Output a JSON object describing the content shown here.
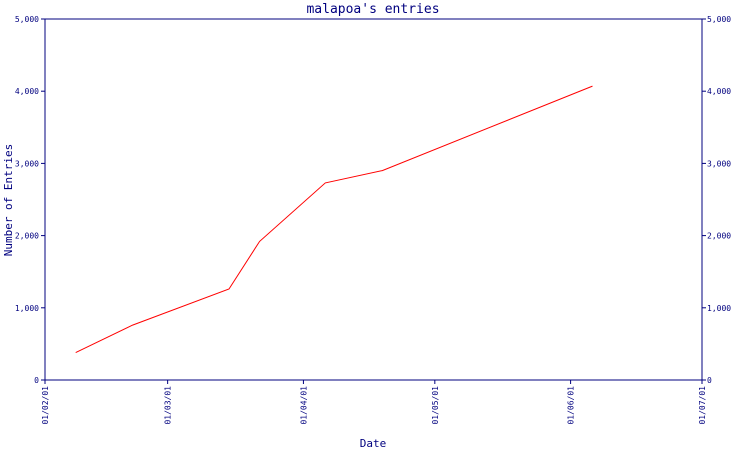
{
  "chart_data": {
    "type": "line",
    "title": "malapoa's entries",
    "xlabel": "Date",
    "ylabel": "Number of Entries",
    "x_ticks": [
      "01/02/01",
      "01/03/01",
      "01/04/01",
      "01/05/01",
      "01/06/01",
      "01/07/01"
    ],
    "xlim": [
      "2001-02-01",
      "2001-07-01"
    ],
    "ylim": [
      0,
      5000
    ],
    "y_ticks": [
      0,
      1000,
      2000,
      3000,
      4000,
      5000
    ],
    "y_tick_labels": [
      "0",
      "1,000",
      "2,000",
      "3,000",
      "4,000",
      "5,000"
    ],
    "grid": false,
    "legend": "none",
    "series": [
      {
        "color": "#ff0000",
        "x": [
          "2001-02-08",
          "2001-02-21",
          "2001-03-15",
          "2001-03-22",
          "2001-04-06",
          "2001-04-19",
          "2001-06-06"
        ],
        "y": [
          380,
          760,
          1260,
          1920,
          2730,
          2900,
          4070
        ]
      }
    ],
    "colors": {
      "axis": "#00007f",
      "line": "#ff0000"
    }
  }
}
